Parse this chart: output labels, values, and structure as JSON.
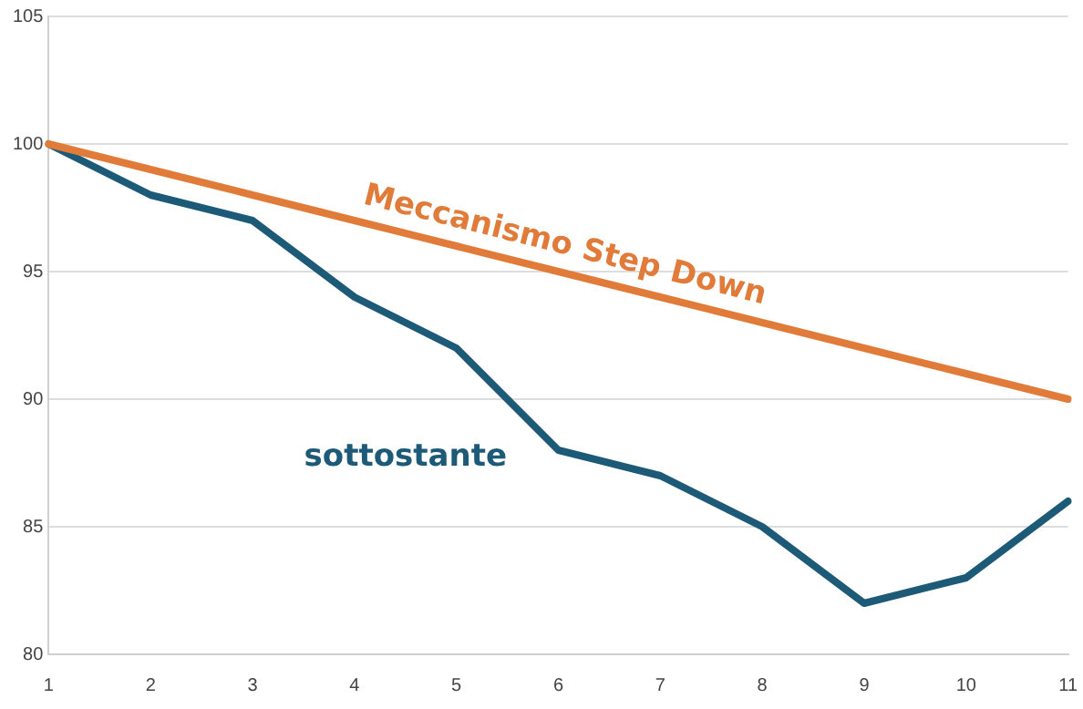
{
  "chart_data": {
    "type": "line",
    "categories": [
      "1",
      "2",
      "3",
      "4",
      "5",
      "6",
      "7",
      "8",
      "9",
      "10",
      "11"
    ],
    "series": [
      {
        "name": "Meccanismo Step Down",
        "color": "#e07b39",
        "values": [
          100,
          99,
          98,
          97,
          96,
          95,
          94,
          93,
          92,
          91,
          90
        ]
      },
      {
        "name": "sottostante",
        "color": "#1d5a78",
        "values": [
          100,
          98,
          97,
          94,
          92,
          88,
          87,
          85,
          82,
          83,
          86
        ]
      }
    ],
    "ylim": [
      80,
      105
    ],
    "yticks": [
      80,
      85,
      90,
      95,
      100,
      105
    ],
    "grid": "y",
    "legend": false,
    "marker": "none",
    "line_style": "solid"
  }
}
